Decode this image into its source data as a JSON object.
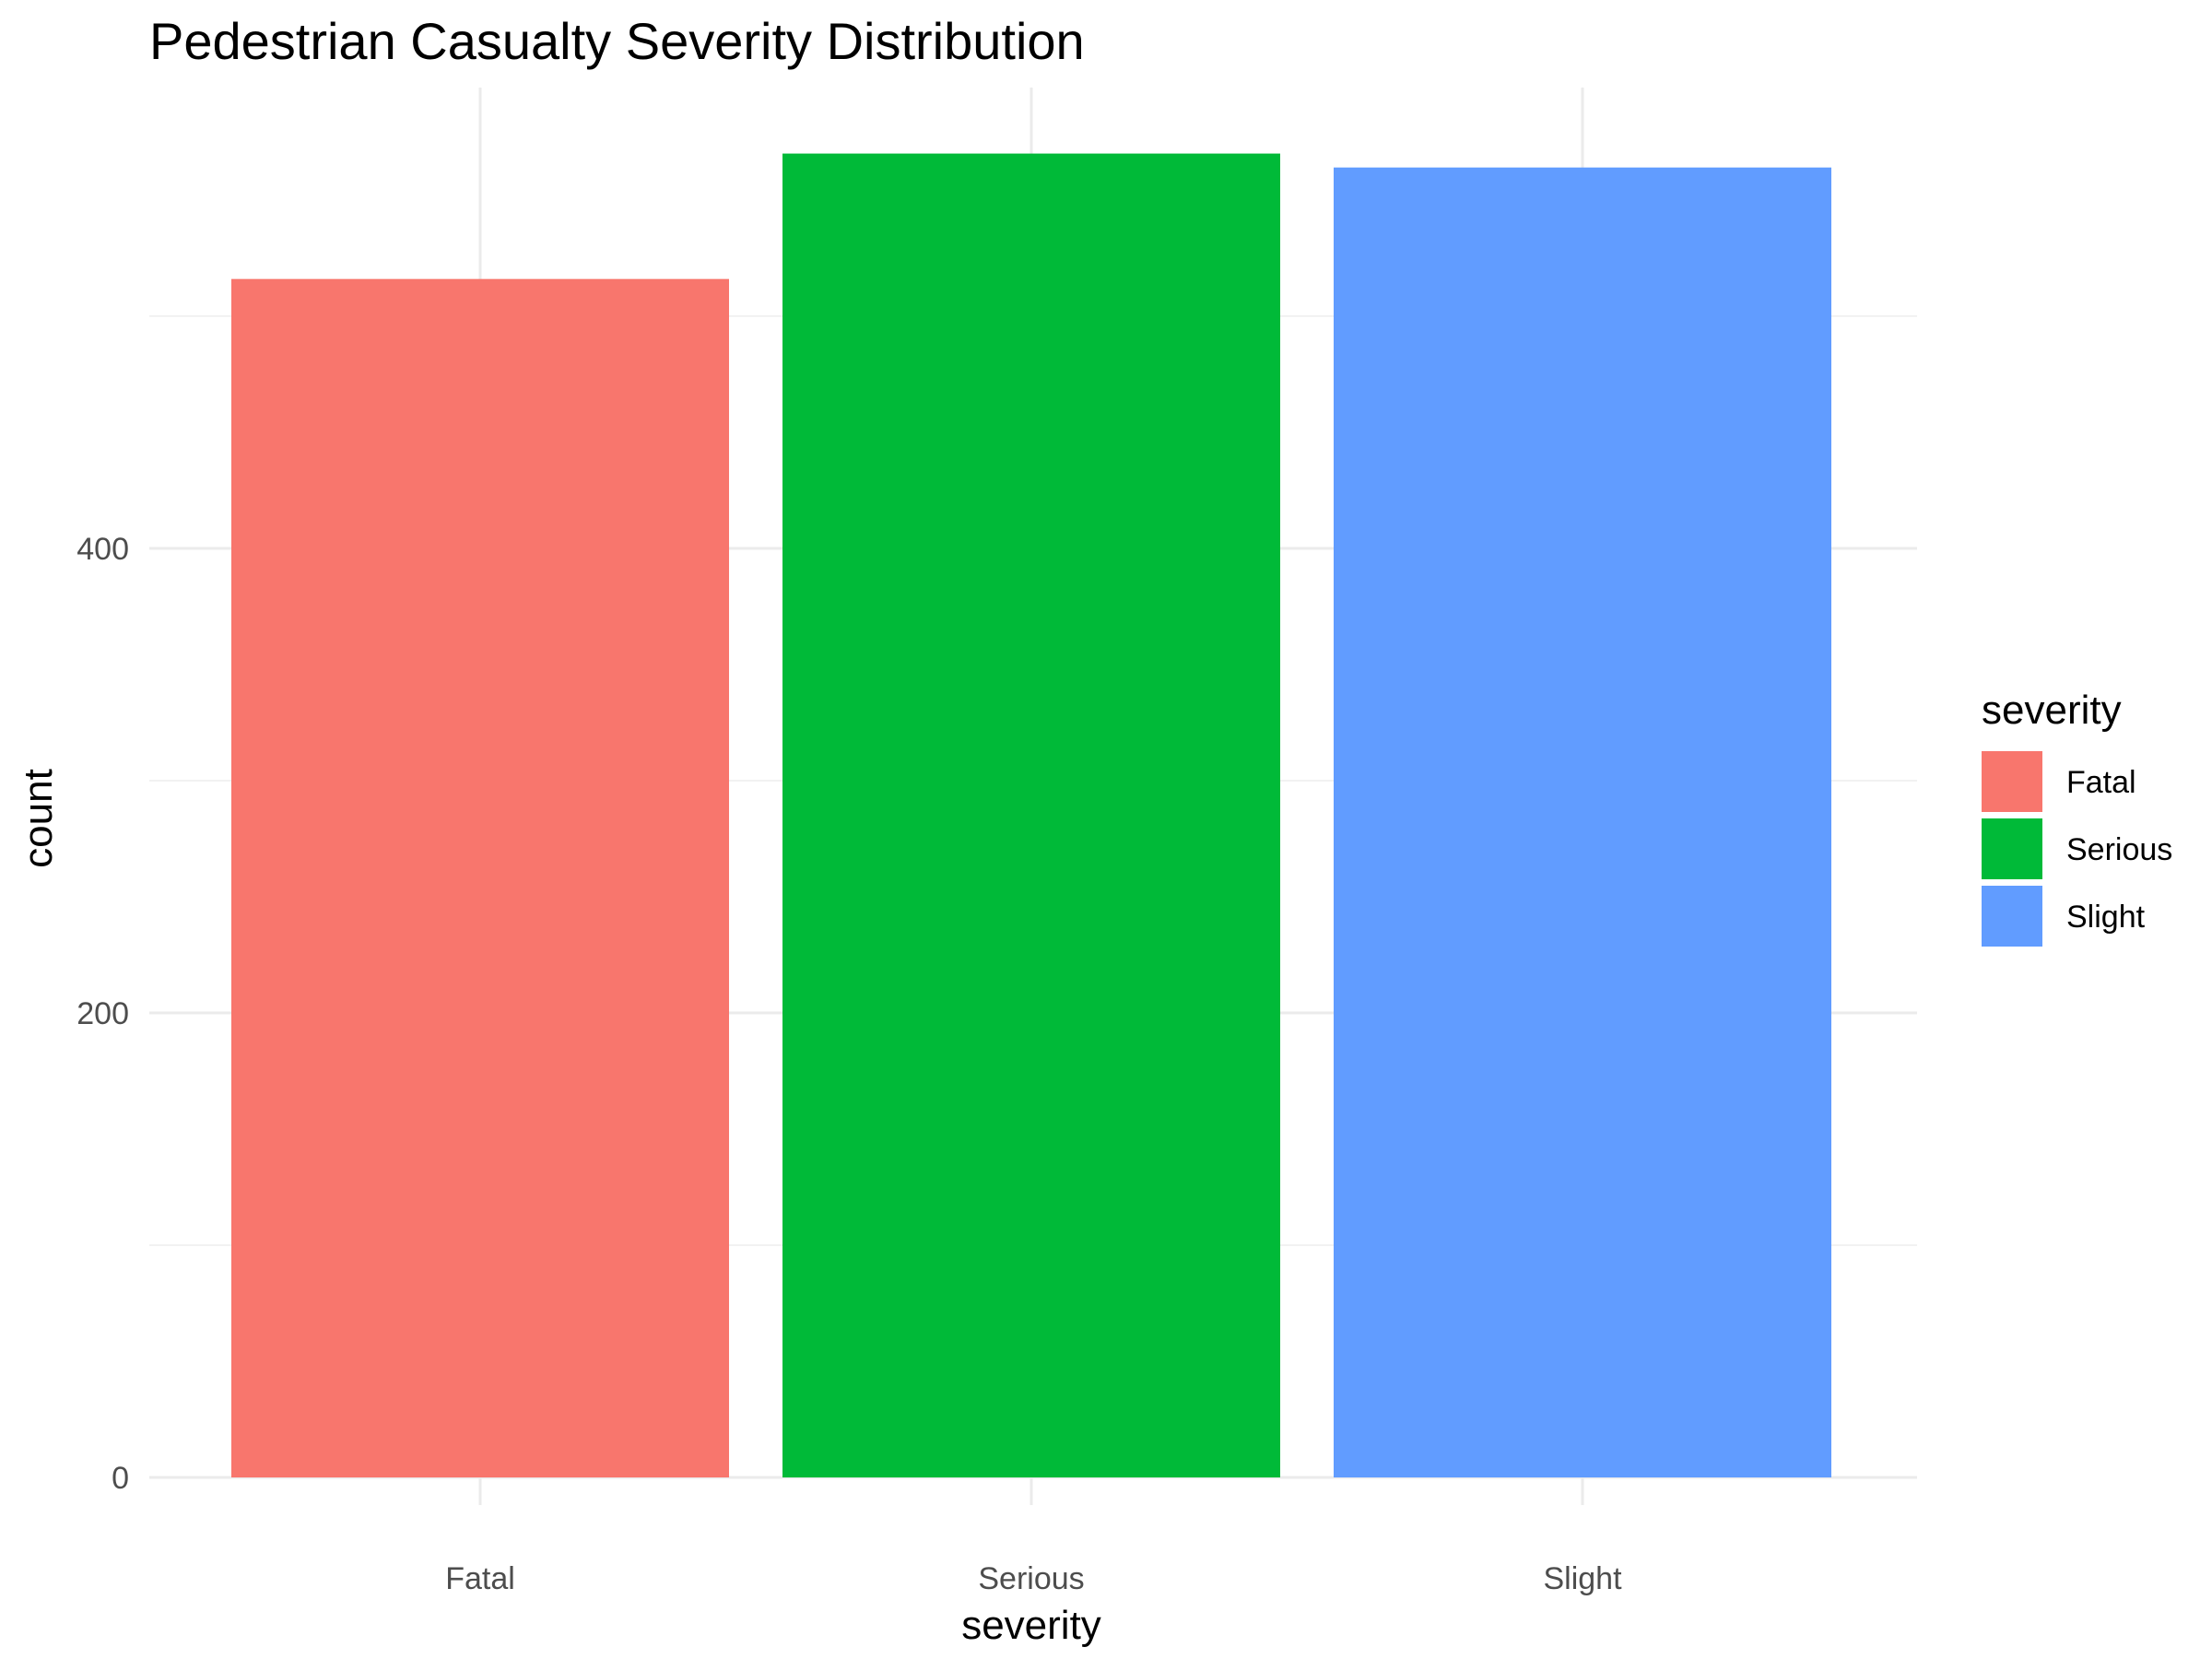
{
  "chart_data": {
    "type": "bar",
    "title": "Pedestrian Casualty Severity Distribution",
    "xlabel": "severity",
    "ylabel": "count",
    "categories": [
      "Fatal",
      "Serious",
      "Slight"
    ],
    "values": [
      516,
      570,
      564
    ],
    "colors": [
      "#F8766D",
      "#00BA38",
      "#619CFF"
    ],
    "ylim": [
      0,
      600
    ],
    "yticks": [
      0,
      200,
      400
    ],
    "ytick_labels": [
      "0",
      "200",
      "400"
    ],
    "grid": true,
    "legend": {
      "title": "severity",
      "position": "right",
      "items": [
        "Fatal",
        "Serious",
        "Slight"
      ]
    }
  }
}
